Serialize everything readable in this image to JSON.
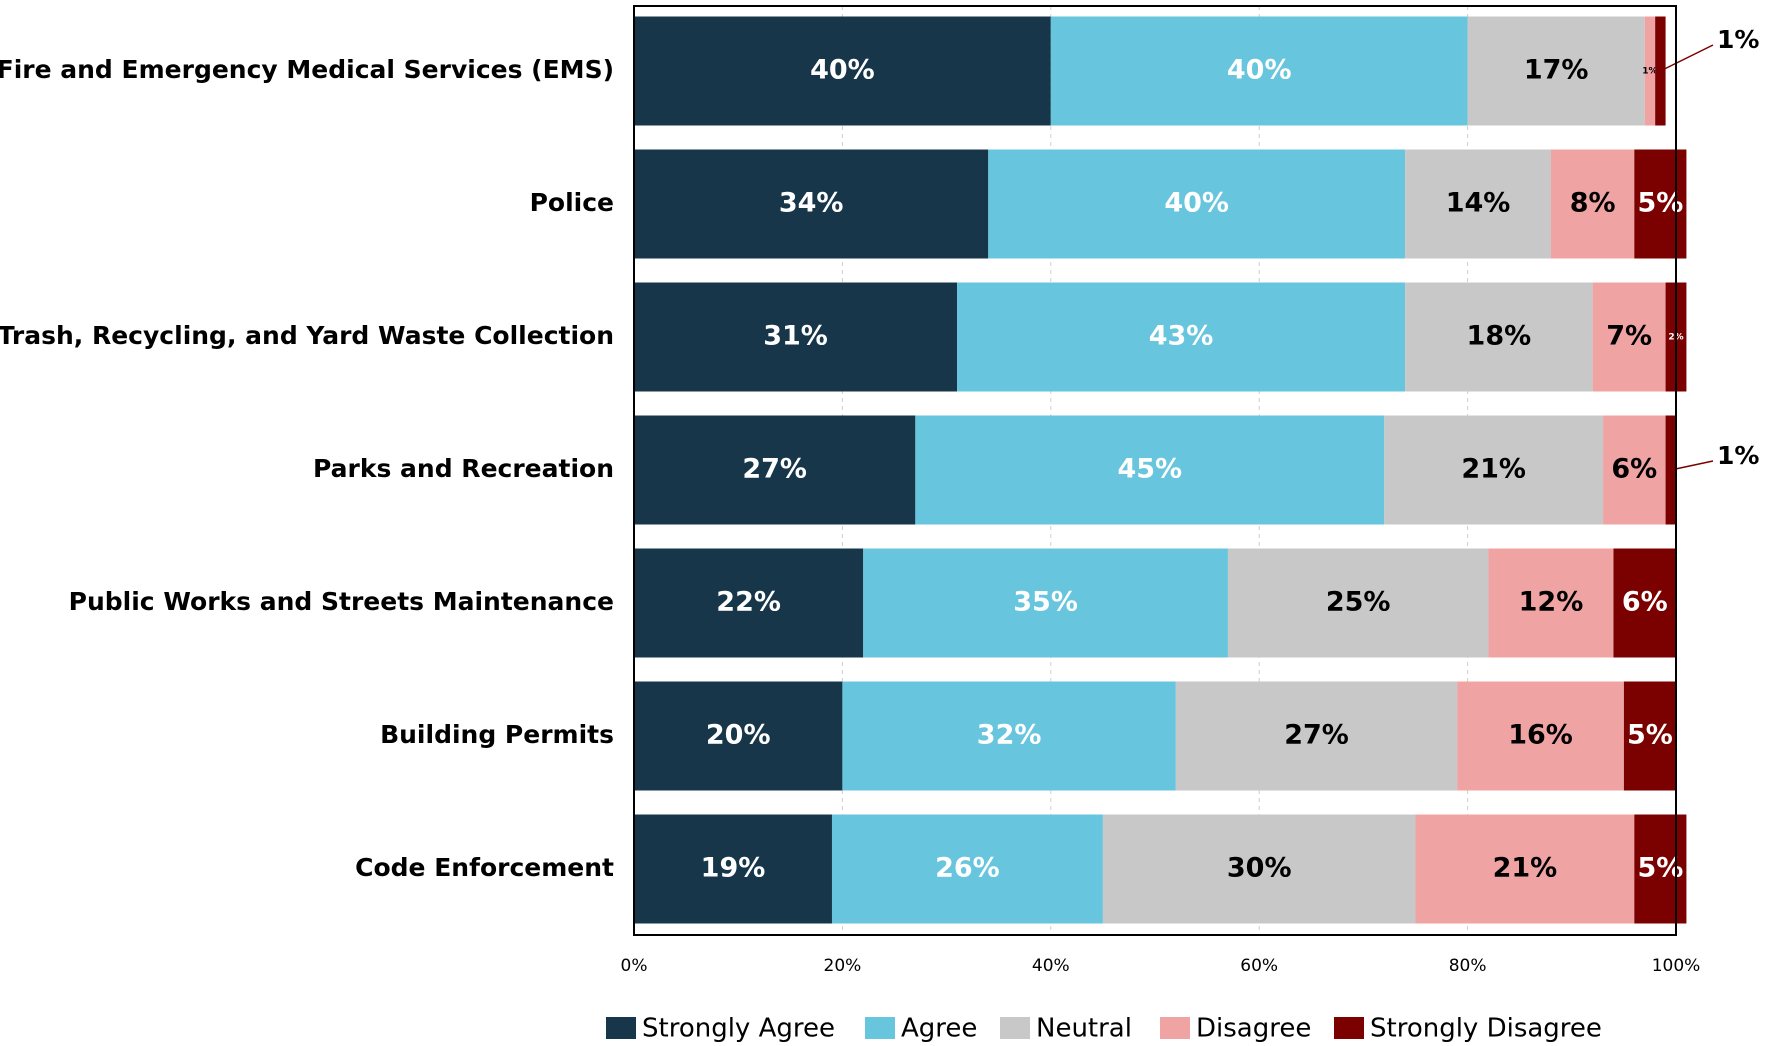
{
  "chart_data": {
    "type": "stacked_bar_horizontal",
    "categories": [
      "Fire and Emergency Medical Services (EMS)",
      "Police",
      "Trash, Recycling, and Yard Waste Collection",
      "Parks and Recreation",
      "Public Works and Streets Maintenance",
      "Building Permits",
      "Code Enforcement"
    ],
    "series": [
      {
        "name": "Strongly Agree",
        "color": "#17364a",
        "label_color": "#ffffff",
        "values": [
          40,
          34,
          31,
          27,
          22,
          20,
          19
        ],
        "value_labels": [
          "40%",
          "34%",
          "31%",
          "27%",
          "22%",
          "20%",
          "19%"
        ]
      },
      {
        "name": "Agree",
        "color": "#67c5de",
        "label_color": "#ffffff",
        "values": [
          40,
          40,
          43,
          45,
          35,
          32,
          26
        ],
        "value_labels": [
          "40%",
          "40%",
          "43%",
          "45%",
          "35%",
          "32%",
          "26%"
        ]
      },
      {
        "name": "Neutral",
        "color": "#c8c8c8",
        "label_color": "#000000",
        "values": [
          17,
          14,
          18,
          21,
          25,
          27,
          30
        ],
        "value_labels": [
          "17%",
          "14%",
          "18%",
          "21%",
          "25%",
          "27%",
          "30%"
        ]
      },
      {
        "name": "Disagree",
        "color": "#f0a3a3",
        "label_color": "#000000",
        "values": [
          1,
          8,
          7,
          6,
          12,
          16,
          21
        ],
        "value_labels": [
          "1%",
          "8%",
          "7%",
          "6%",
          "12%",
          "16%",
          "21%"
        ]
      },
      {
        "name": "Strongly Disagree",
        "color": "#7b0000",
        "label_color": "#ffffff",
        "values": [
          1,
          5,
          2,
          1,
          6,
          5,
          5
        ],
        "value_labels": [
          "1%",
          "5%",
          "2%",
          "1%",
          "6%",
          "5%",
          "5%"
        ]
      }
    ],
    "xlim": [
      0,
      100
    ],
    "xticks": [
      {
        "value": 0,
        "label": "0%"
      },
      {
        "value": 20,
        "label": "20%"
      },
      {
        "value": 40,
        "label": "40%"
      },
      {
        "value": 60,
        "label": "60%"
      },
      {
        "value": 80,
        "label": "80%"
      },
      {
        "value": 100,
        "label": "100%"
      }
    ],
    "grid": true,
    "legend": "bottom"
  }
}
